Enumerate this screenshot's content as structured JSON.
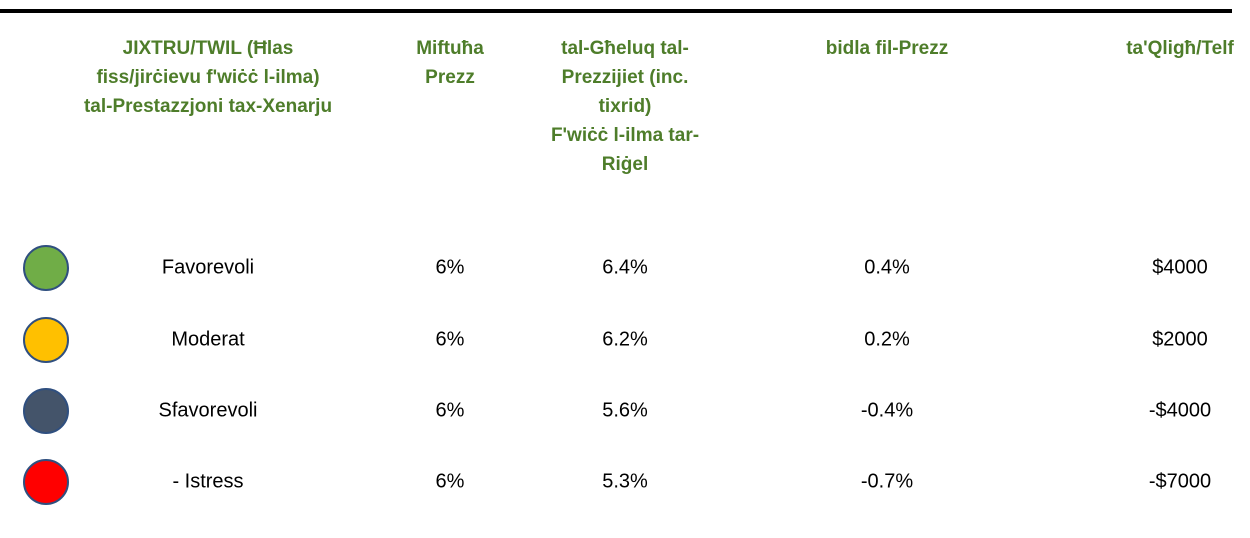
{
  "table": {
    "header": [
      [
        "JIXTRU/TWIL (Ħlas",
        "fiss/jirċievu f'wiċċ l-ilma)",
        "tal-Prestazzjoni tax-Xenarju"
      ],
      [
        "Miftuħa",
        "Prezz"
      ],
      [
        "tal-Għeluq tal-",
        "Prezzijiet (inc.",
        "tixrid)",
        "F'wiċċ l-ilma tar-",
        "Riġel"
      ],
      [
        "bidla fil-Prezz"
      ],
      [
        "ta'Qligħ/Telf"
      ]
    ],
    "rows": [
      {
        "color": "#70ad47",
        "cells": [
          "Favorevoli",
          "6%",
          "6.4%",
          "0.4%",
          "$4000"
        ]
      },
      {
        "color": "#ffc000",
        "cells": [
          "Moderat",
          "6%",
          "6.2%",
          "0.2%",
          "$2000"
        ]
      },
      {
        "color": "#44546a",
        "cells": [
          "Sfavorevoli",
          "6%",
          "5.6%",
          "-0.4%",
          "-$4000"
        ]
      },
      {
        "color": "#ff0000",
        "cells": [
          "- Istress",
          "6%",
          "5.3%",
          "-0.7%",
          "-$7000"
        ]
      }
    ]
  }
}
